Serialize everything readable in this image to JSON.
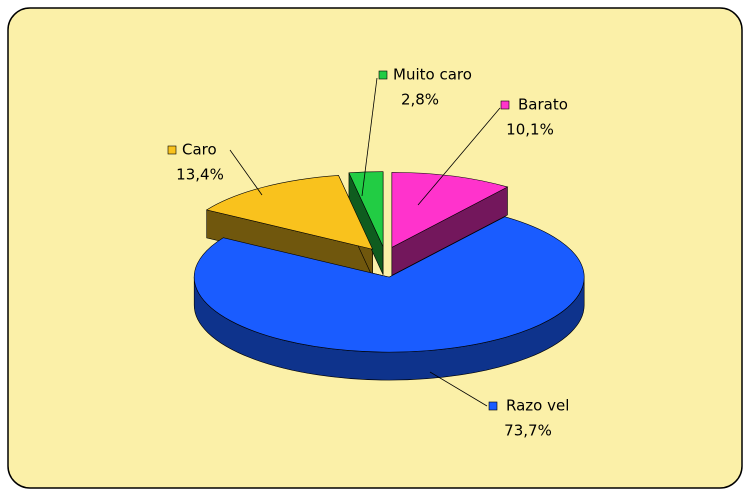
{
  "chart_data": {
    "type": "pie",
    "categories": [
      "Barato",
      "Razo vel",
      "Caro",
      "Muito caro"
    ],
    "values": [
      10.1,
      73.7,
      13.4,
      2.8
    ],
    "value_labels": [
      "10,1%",
      "73,7%",
      "13,4%",
      "2,8%"
    ],
    "colors": [
      "#ff33cc",
      "#1a5cff",
      "#f9c21d",
      "#22cc44"
    ]
  }
}
